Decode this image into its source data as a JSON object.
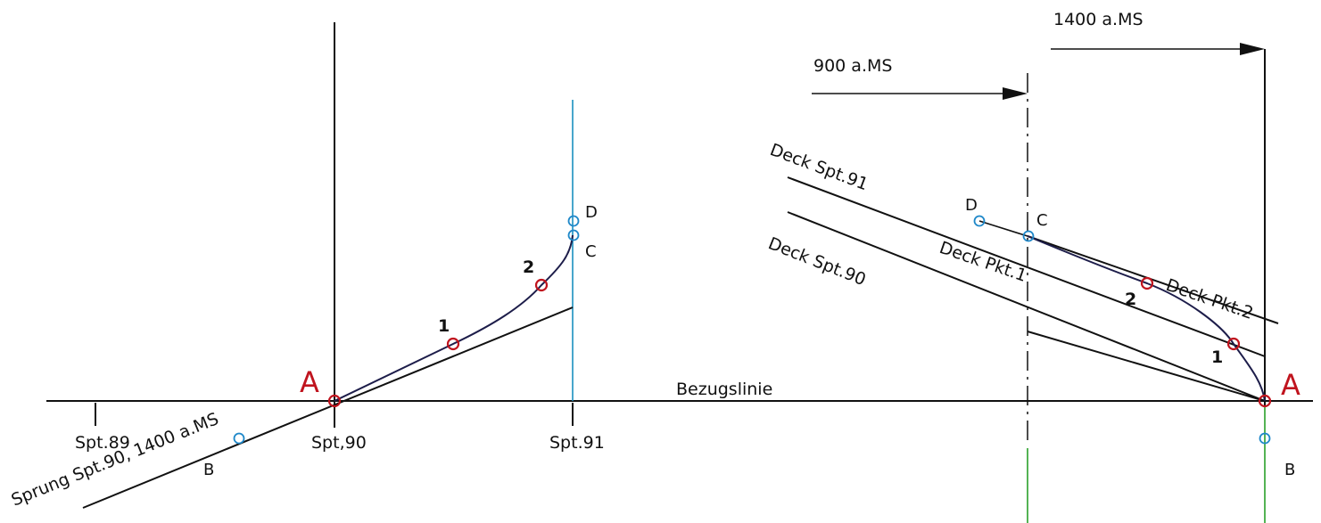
{
  "labels": {
    "top_1400": "1400  a.MS",
    "top_900": "900  a.MS",
    "deck_spt91": "Deck  Spt.91",
    "deck_spt90": "Deck  Spt.90",
    "deck_pkt1": "Deck  Pkt.1",
    "deck_pkt2": "Deck  Pkt.2",
    "bezugslinie": "Bezugslinie",
    "sprung": "Sprung  Spt.90,  1400  a.MS",
    "spt89": "Spt.89",
    "spt90": "Spt,90",
    "spt91": "Spt.91"
  },
  "points": {
    "A": "A",
    "B": "B",
    "C": "C",
    "D": "D",
    "p1": "1",
    "p2": "2"
  },
  "colors": {
    "line": "#111111",
    "curve": "#1d1d4a",
    "cyan_line": "#1a8fc0",
    "green_line": "#2aa02a",
    "red_point": "#c0141e",
    "blue_point": "#1f88c9",
    "A_label": "#c0141e"
  }
}
